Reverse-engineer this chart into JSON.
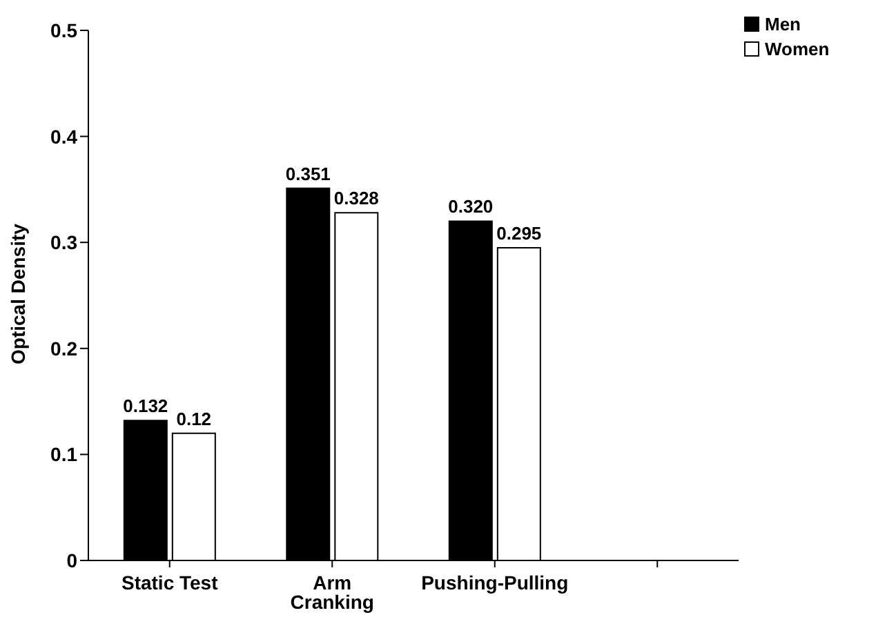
{
  "chart_data": {
    "type": "bar",
    "ylabel": "Optical Density",
    "categories": [
      "Static Test",
      "Arm Cranking",
      "Pushing-Pulling",
      null
    ],
    "series": [
      {
        "name": "Men",
        "color": "#000000",
        "values": [
          0.132,
          0.351,
          0.32,
          null
        ],
        "value_labels": [
          "0.132",
          "0.351",
          "0.320",
          null
        ]
      },
      {
        "name": "Women",
        "color": "#ffffff",
        "values": [
          0.12,
          0.328,
          0.295,
          null
        ],
        "value_labels": [
          "0.12",
          "0.328",
          "0.295",
          null
        ]
      }
    ],
    "ylim": [
      0,
      0.5
    ],
    "yticks": [
      0,
      0.1,
      0.2,
      0.3,
      0.4,
      0.5
    ],
    "grid": false,
    "legend": "top right"
  }
}
